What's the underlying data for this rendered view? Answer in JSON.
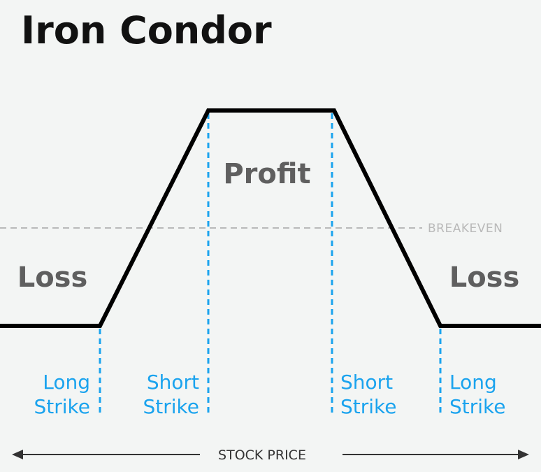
{
  "title": "Iron Condor",
  "regions": {
    "profit": "Profit",
    "loss_left": "Loss",
    "loss_right": "Loss"
  },
  "breakeven_label": "BREAKEVEN",
  "axis_label": "STOCK PRICE",
  "strikes": {
    "long_left": {
      "line1": "Long",
      "line2": "Strike"
    },
    "short_left": {
      "line1": "Short",
      "line2": "Strike"
    },
    "short_right": {
      "line1": "Short",
      "line2": "Strike"
    },
    "long_right": {
      "line1": "Long",
      "line2": "Strike"
    }
  },
  "colors": {
    "background": "#f3f5f4",
    "title": "#111111",
    "payoff_line": "#000000",
    "region_text": "#5f5f5f",
    "breakeven": "#b9b9b9",
    "strike": "#1aa3ee",
    "axis": "#333333"
  }
}
